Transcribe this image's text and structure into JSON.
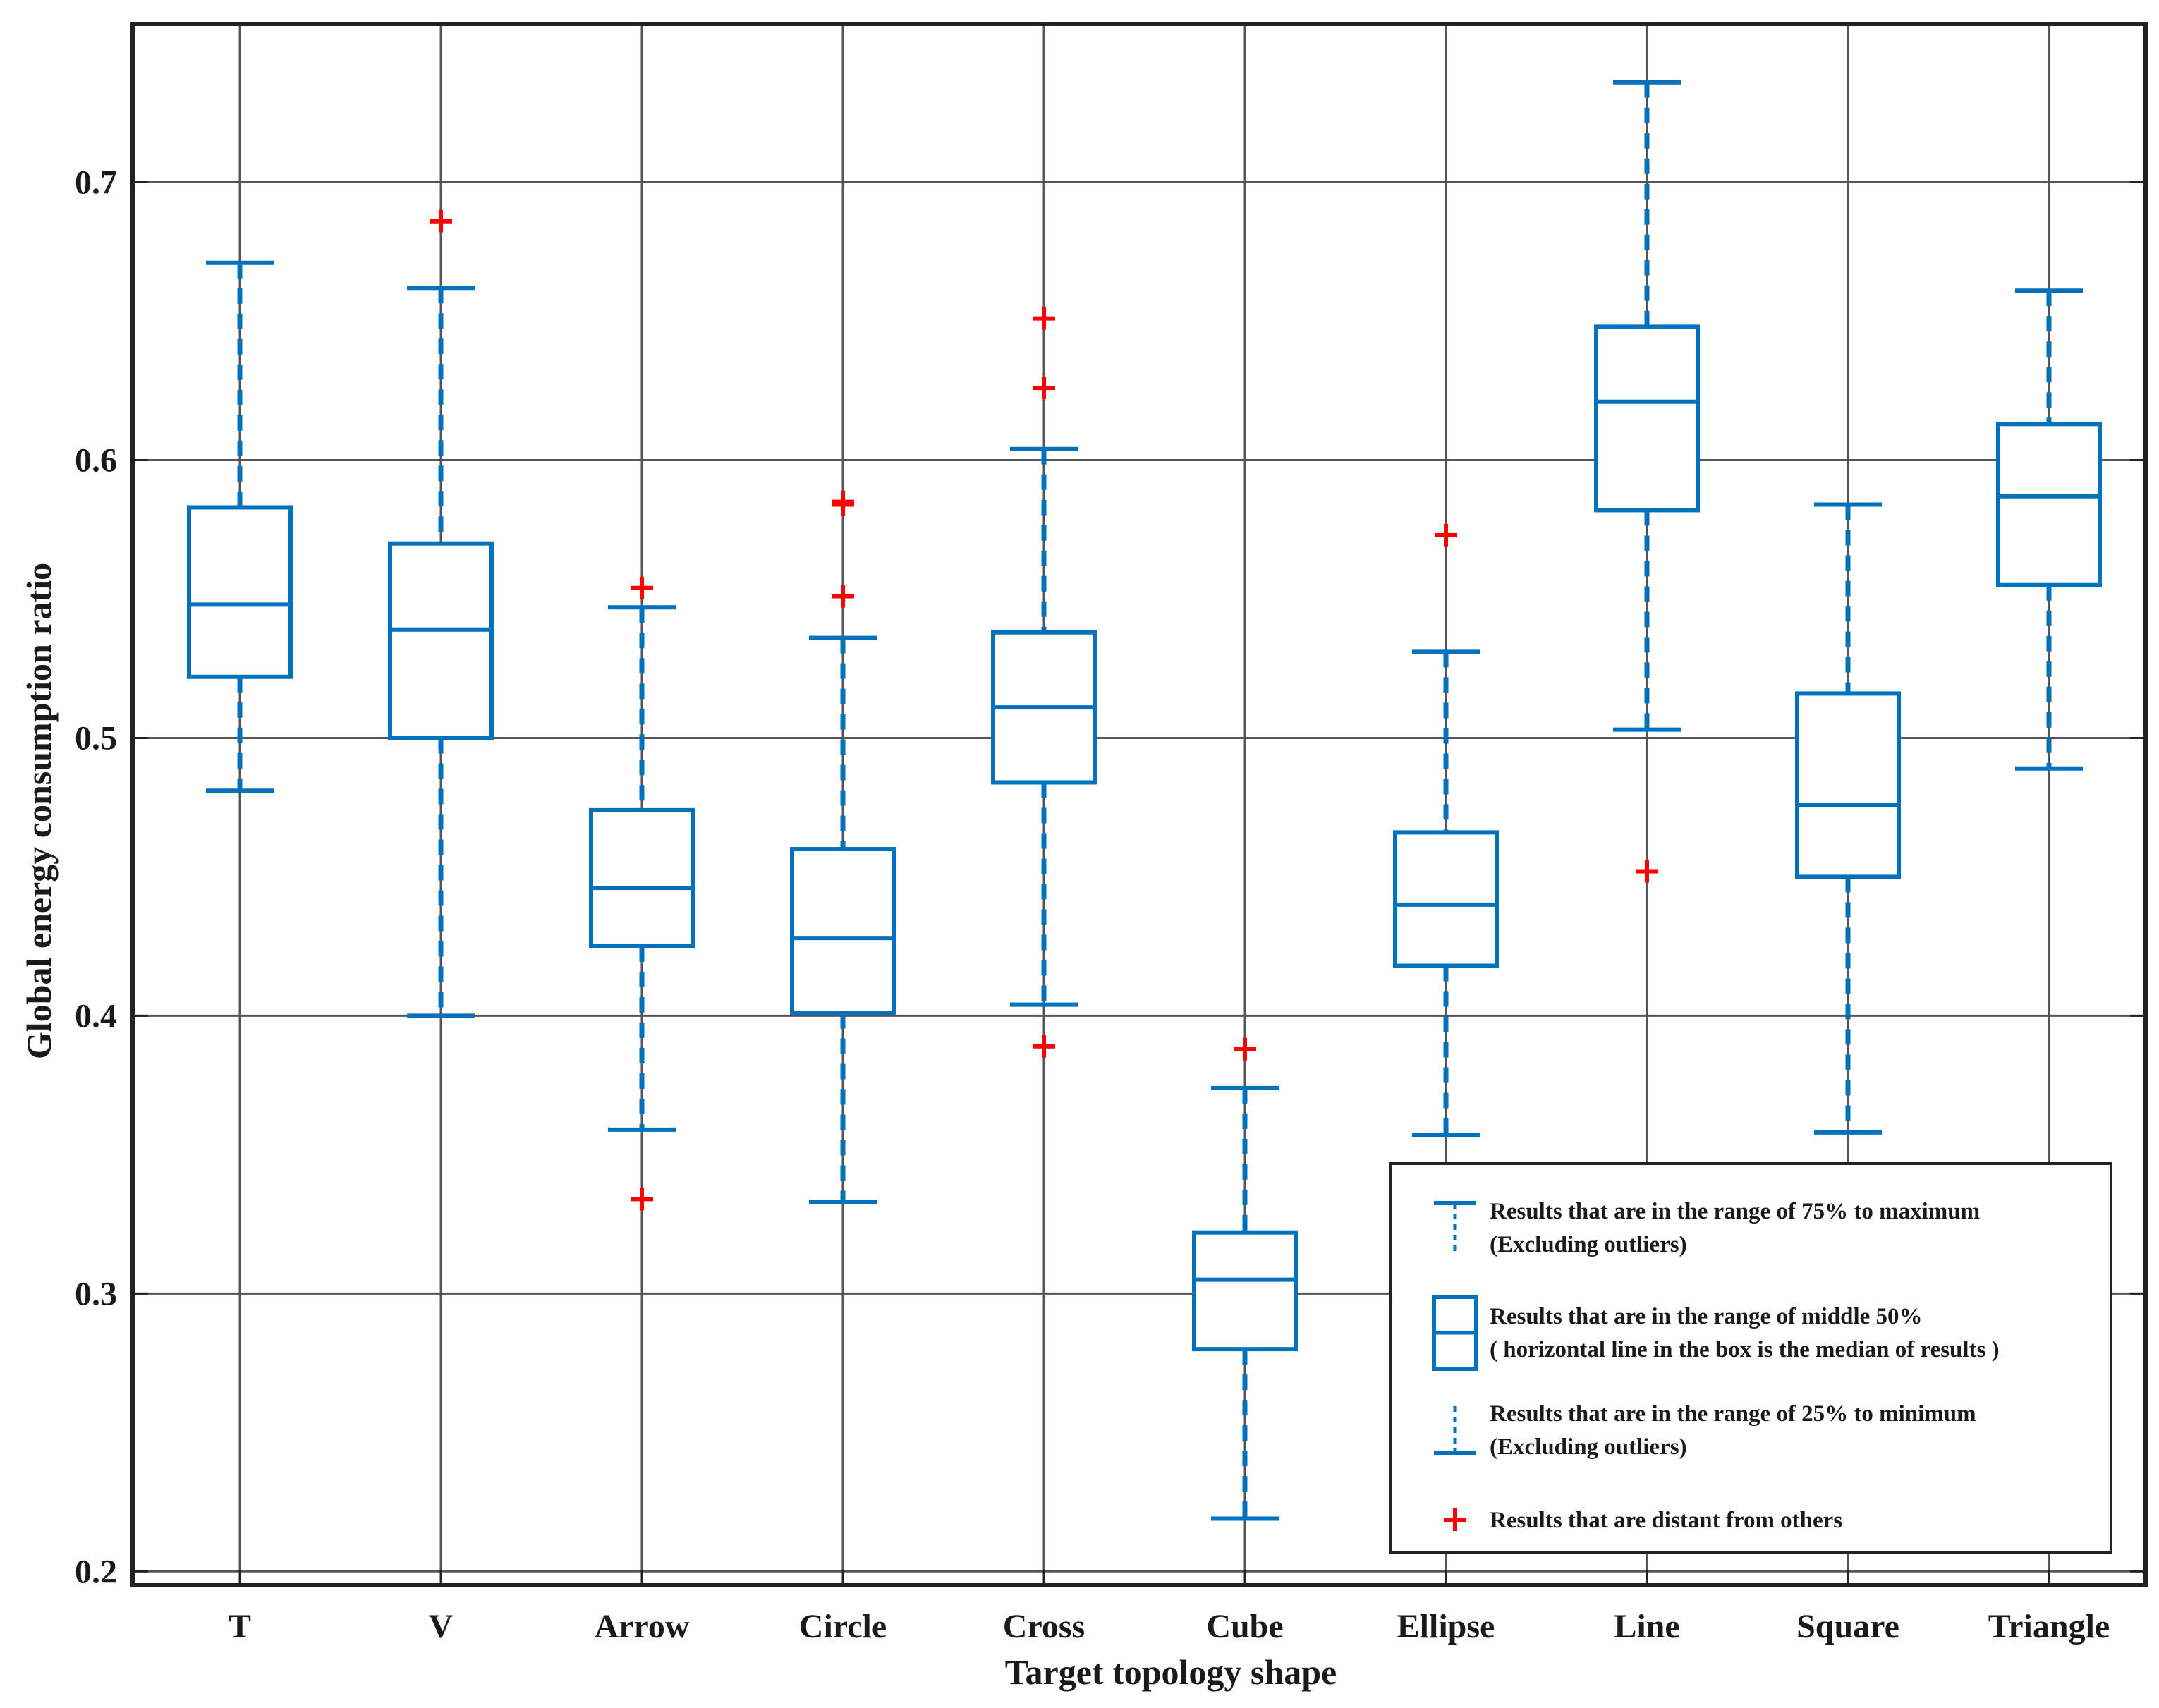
{
  "chart_data": {
    "type": "boxplot",
    "xlabel": "Target topology shape",
    "ylabel": "Global energy consumption ratio",
    "ylim": [
      0.195,
      0.757
    ],
    "yticks": [
      0.2,
      0.3,
      0.4,
      0.5,
      0.6,
      0.7
    ],
    "ytick_labels": [
      "0.2",
      "0.3",
      "0.4",
      "0.5",
      "0.6",
      "0.7"
    ],
    "grid": true,
    "colors": {
      "box": "#0072BD",
      "outlier": "#FF0000",
      "grid": "#555555",
      "axis": "#222222"
    },
    "categories": [
      "T",
      "V",
      "Arrow",
      "Circle",
      "Cross",
      "Cube",
      "Ellipse",
      "Line",
      "Square",
      "Triangle"
    ],
    "boxes": [
      {
        "name": "T",
        "whisker_low": 0.481,
        "q1": 0.522,
        "median": 0.548,
        "q3": 0.583,
        "whisker_high": 0.671,
        "outliers": []
      },
      {
        "name": "V",
        "whisker_low": 0.4,
        "q1": 0.5,
        "median": 0.539,
        "q3": 0.57,
        "whisker_high": 0.662,
        "outliers": [
          0.686
        ]
      },
      {
        "name": "Arrow",
        "whisker_low": 0.359,
        "q1": 0.425,
        "median": 0.446,
        "q3": 0.474,
        "whisker_high": 0.547,
        "outliers": [
          0.334,
          0.554
        ]
      },
      {
        "name": "Circle",
        "whisker_low": 0.333,
        "q1": 0.401,
        "median": 0.428,
        "q3": 0.46,
        "whisker_high": 0.536,
        "outliers": [
          0.551,
          0.584,
          0.585
        ]
      },
      {
        "name": "Cross",
        "whisker_low": 0.404,
        "q1": 0.484,
        "median": 0.511,
        "q3": 0.538,
        "whisker_high": 0.604,
        "outliers": [
          0.389,
          0.626,
          0.651
        ]
      },
      {
        "name": "Cube",
        "whisker_low": 0.219,
        "q1": 0.28,
        "median": 0.305,
        "q3": 0.322,
        "whisker_high": 0.374,
        "outliers": [
          0.388
        ]
      },
      {
        "name": "Ellipse",
        "whisker_low": 0.357,
        "q1": 0.418,
        "median": 0.44,
        "q3": 0.466,
        "whisker_high": 0.531,
        "outliers": [
          0.573
        ]
      },
      {
        "name": "Line",
        "whisker_low": 0.503,
        "q1": 0.582,
        "median": 0.621,
        "q3": 0.648,
        "whisker_high": 0.736,
        "outliers": [
          0.452
        ]
      },
      {
        "name": "Square",
        "whisker_low": 0.358,
        "q1": 0.45,
        "median": 0.476,
        "q3": 0.516,
        "whisker_high": 0.584,
        "outliers": []
      },
      {
        "name": "Triangle",
        "whisker_low": 0.489,
        "q1": 0.555,
        "median": 0.587,
        "q3": 0.613,
        "whisker_high": 0.661,
        "outliers": []
      }
    ],
    "legend": {
      "placement": "bottom-right",
      "entries": [
        {
          "key": "upper-whisker",
          "lines": [
            "Results that are in the range of 75% to maximum",
            "(Excluding outliers)"
          ]
        },
        {
          "key": "box",
          "lines": [
            "Results that are in the range of middle 50%",
            "( horizontal line in the box is the median of results )"
          ]
        },
        {
          "key": "lower-whisker",
          "lines": [
            "Results that are in the range of 25% to minimum",
            "(Excluding outliers)"
          ]
        },
        {
          "key": "outlier",
          "lines": [
            "Results that are distant from others"
          ]
        }
      ]
    }
  }
}
